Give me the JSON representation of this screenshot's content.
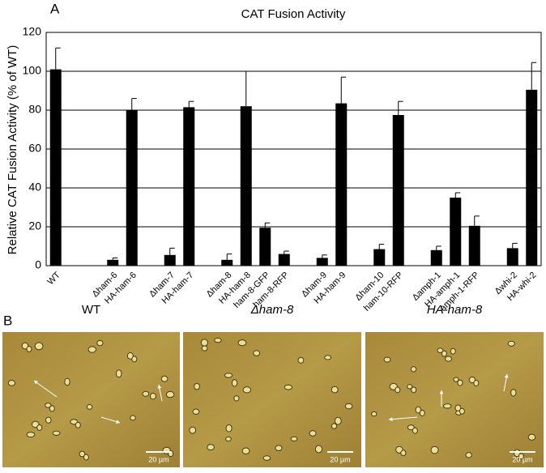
{
  "chart_data": {
    "type": "bar",
    "panel_label": "A",
    "title": "CAT Fusion Activity",
    "y_label": "Relative CAT Fusion Activity (% of WT)",
    "categories": [
      "WT",
      null,
      null,
      "Δham-6",
      "HA-ham-6",
      null,
      "Δham-7",
      "HA-ham-7",
      null,
      "Δham-8",
      "HA-ham-8",
      "ham-8-GFP",
      "ham-8-RFP",
      null,
      "Δham-9",
      "HA-ham-9",
      null,
      "Δham-10",
      "ham-10-RFP",
      null,
      "Δamph-1",
      "HA-amph-1",
      "amph-1-RFP",
      null,
      "Δwhi-2",
      "HA-whi-2"
    ],
    "values": [
      101,
      null,
      null,
      3,
      80,
      null,
      5.5,
      81.5,
      null,
      3,
      82,
      19.5,
      6,
      null,
      4,
      83.5,
      null,
      8.5,
      77.5,
      null,
      8,
      35,
      20.5,
      null,
      9,
      90.5
    ],
    "errors": [
      11,
      null,
      null,
      1,
      6,
      null,
      3.5,
      3,
      null,
      3,
      18,
      2.5,
      1.5,
      null,
      1.5,
      13.5,
      null,
      2.5,
      7,
      null,
      2,
      2.5,
      5,
      null,
      2.5,
      14
    ],
    "color": "#000000",
    "ylim": [
      0,
      120
    ],
    "yticks": [
      0,
      20,
      40,
      60,
      80,
      100,
      120
    ],
    "grid": true
  },
  "panel_b": {
    "label": "B",
    "images": [
      {
        "title": "WT",
        "scale": "20 µm"
      },
      {
        "title": "Δham-8",
        "scale": "20 µm"
      },
      {
        "title": "HA-ham-8",
        "scale": "20 µm"
      }
    ]
  }
}
